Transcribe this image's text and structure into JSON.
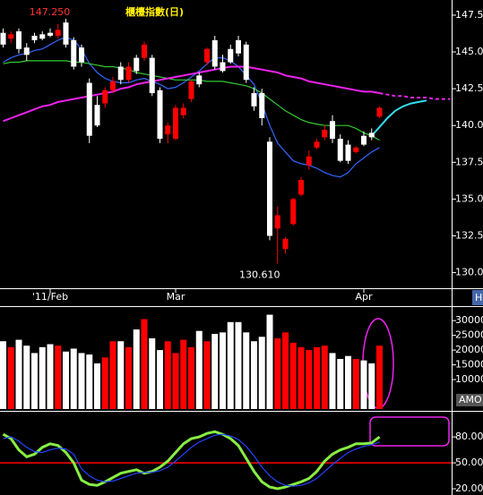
{
  "chart_data": [
    {
      "type": "candlestick",
      "title": "櫃檯指數(日)",
      "categories": [
        null,
        null,
        null,
        null,
        null,
        null,
        "'11/Feb",
        null,
        null,
        null,
        null,
        null,
        null,
        null,
        null,
        null,
        null,
        null,
        null,
        null,
        null,
        null,
        "Mar",
        null,
        null,
        null,
        null,
        null,
        null,
        null,
        null,
        null,
        null,
        null,
        null,
        null,
        null,
        null,
        null,
        null,
        null,
        null,
        null,
        null,
        null,
        null,
        "Apr",
        null,
        null,
        null,
        null,
        null,
        null,
        null,
        null,
        null,
        null,
        null
      ],
      "open": [
        146.3,
        145.9,
        146.4,
        145.3,
        146.1,
        146.2,
        146.3,
        146.1,
        147.0,
        145.8,
        145.3,
        142.9,
        141.4,
        141.5,
        142.4,
        144.0,
        143.1,
        144.6,
        144.6,
        144.6,
        142.4,
        139.4,
        139.1,
        140.7,
        141.8,
        143.4,
        144.3,
        145.8,
        144.3,
        145.2,
        145.8,
        145.5,
        142.2,
        142.2,
        138.9,
        133.0,
        131.6,
        133.3,
        135.3,
        137.3,
        138.5,
        139.2,
        140.3,
        139.1,
        138.7,
        138.2,
        139.3,
        139.5,
        140.6,
        null,
        null,
        null,
        null,
        null,
        null,
        null,
        null,
        null
      ],
      "high": [
        146.6,
        146.4,
        146.6,
        145.6,
        146.3,
        146.4,
        146.6,
        146.9,
        147.25,
        146.0,
        145.5,
        143.2,
        142.0,
        142.6,
        143.3,
        144.3,
        144.3,
        144.8,
        145.7,
        144.8,
        142.6,
        140.2,
        141.4,
        141.5,
        143.1,
        143.6,
        145.3,
        146.1,
        144.8,
        145.5,
        146.1,
        145.7,
        142.6,
        142.5,
        139.2,
        134.5,
        132.4,
        135.1,
        136.5,
        138.3,
        139.1,
        140.0,
        140.7,
        139.4,
        139.0,
        138.6,
        139.6,
        139.8,
        141.3,
        null,
        null,
        null,
        null,
        null,
        null,
        null,
        null,
        null
      ],
      "low": [
        145.3,
        145.6,
        144.9,
        144.4,
        145.6,
        145.8,
        146.0,
        145.9,
        145.3,
        143.8,
        144.0,
        138.8,
        139.9,
        141.2,
        142.2,
        142.8,
        142.9,
        143.5,
        144.4,
        142.0,
        138.8,
        138.8,
        139.0,
        140.5,
        141.6,
        142.6,
        144.1,
        143.8,
        143.6,
        144.2,
        144.7,
        142.9,
        141.0,
        140.0,
        132.2,
        130.61,
        131.3,
        133.2,
        135.2,
        137.0,
        138.4,
        139.0,
        138.8,
        137.5,
        137.4,
        138.1,
        138.6,
        139.0,
        140.5,
        null,
        null,
        null,
        null,
        null,
        null,
        null,
        null,
        null
      ],
      "close": [
        145.5,
        146.2,
        145.2,
        144.8,
        145.8,
        145.9,
        146.1,
        146.5,
        145.5,
        144.0,
        144.3,
        139.3,
        140.0,
        142.4,
        143.0,
        143.1,
        144.0,
        143.7,
        145.5,
        142.2,
        139.1,
        140.0,
        141.2,
        141.2,
        143.0,
        142.8,
        145.2,
        144.0,
        143.7,
        144.3,
        144.9,
        143.1,
        141.3,
        140.5,
        132.5,
        133.9,
        132.3,
        135.0,
        136.3,
        137.9,
        138.9,
        139.7,
        139.1,
        137.6,
        137.6,
        138.5,
        138.7,
        139.2,
        141.2,
        null,
        null,
        null,
        null,
        null,
        null,
        null,
        null,
        null
      ],
      "up_color": "#ff0000",
      "down_color": "#ffffff",
      "series": [
        {
          "color": "#3366ff",
          "values": [
            144.3,
            144.6,
            144.8,
            144.9,
            145.1,
            145.2,
            145.5,
            145.8,
            146.0,
            145.8,
            145.2,
            144.2,
            143.6,
            143.2,
            143.0,
            142.9,
            142.9,
            143.1,
            143.2,
            143.0,
            142.8,
            142.5,
            142.6,
            142.9,
            143.3,
            143.7,
            144.2,
            144.6,
            144.6,
            144.4,
            144.0,
            143.4,
            142.8,
            141.5,
            140.0,
            138.8,
            138.2,
            137.6,
            137.4,
            137.3,
            137.1,
            136.8,
            136.6,
            136.5,
            136.8,
            137.4,
            137.8,
            138.2,
            138.5,
            null,
            null,
            null,
            null,
            null,
            null,
            null,
            null,
            null
          ]
        },
        {
          "color": "#33cc33",
          "values": [
            144.2,
            144.3,
            144.3,
            144.4,
            144.4,
            144.4,
            144.4,
            144.4,
            144.4,
            144.3,
            144.3,
            144.2,
            144.1,
            144.0,
            144.0,
            143.9,
            143.8,
            143.6,
            143.5,
            143.4,
            143.3,
            143.2,
            143.1,
            143.1,
            143.1,
            143.1,
            143.0,
            143.0,
            143.0,
            142.9,
            142.8,
            142.7,
            142.5,
            142.2,
            141.8,
            141.4,
            141.0,
            140.7,
            140.4,
            140.2,
            140.1,
            140.0,
            140.0,
            140.0,
            140.0,
            139.8,
            139.5,
            139.3,
            139.0,
            null,
            null,
            null,
            null,
            null,
            null,
            null,
            null,
            null
          ]
        },
        {
          "color": "#ee22ee",
          "values": [
            140.3,
            140.5,
            140.7,
            140.9,
            141.1,
            141.3,
            141.4,
            141.6,
            141.7,
            141.8,
            141.9,
            142.0,
            142.1,
            142.2,
            142.3,
            142.5,
            142.6,
            142.8,
            142.9,
            143.0,
            143.1,
            143.2,
            143.3,
            143.4,
            143.5,
            143.6,
            143.7,
            143.8,
            143.9,
            144.0,
            144.0,
            144.0,
            143.9,
            143.8,
            143.7,
            143.6,
            143.4,
            143.3,
            143.2,
            143.0,
            142.9,
            142.8,
            142.7,
            142.6,
            142.5,
            142.4,
            142.3,
            142.3,
            142.2,
            null,
            null,
            null,
            null,
            null,
            null,
            null,
            null,
            null
          ]
        },
        {
          "color": "#ee22ee",
          "dash": true,
          "values": [
            null,
            null,
            null,
            null,
            null,
            null,
            null,
            null,
            null,
            null,
            null,
            null,
            null,
            null,
            null,
            null,
            null,
            null,
            null,
            null,
            null,
            null,
            null,
            null,
            null,
            null,
            null,
            null,
            null,
            null,
            null,
            null,
            null,
            null,
            null,
            null,
            null,
            null,
            null,
            null,
            null,
            null,
            null,
            null,
            null,
            null,
            null,
            null,
            142.2,
            142.1,
            142.0,
            142.0,
            141.9,
            141.9,
            141.9,
            141.8,
            141.8,
            141.8
          ]
        },
        {
          "color": "#33ddee",
          "values": [
            null,
            null,
            null,
            null,
            null,
            null,
            null,
            null,
            null,
            null,
            null,
            null,
            null,
            null,
            null,
            null,
            null,
            null,
            null,
            null,
            null,
            null,
            null,
            null,
            null,
            null,
            null,
            null,
            null,
            null,
            null,
            null,
            null,
            null,
            null,
            null,
            null,
            null,
            null,
            null,
            null,
            null,
            null,
            null,
            null,
            null,
            null,
            139.3,
            139.9,
            140.5,
            141.0,
            141.3,
            141.5,
            141.6,
            141.7,
            null,
            null,
            null
          ]
        }
      ],
      "ylim": [
        128.94,
        148.53
      ],
      "yticks": [
        147.5,
        {
          "value": 145,
          "label": "145.0"
        },
        142.5,
        {
          "value": 140,
          "label": "140.0"
        },
        137.5,
        {
          "value": 135,
          "label": "135.0"
        },
        132.5,
        {
          "value": 130,
          "label": "130.0"
        }
      ],
      "high_label": {
        "value": 147.25,
        "label": "147.250"
      },
      "low_label": {
        "value": 130.61,
        "label": "130.610"
      },
      "corner_label": "H"
    },
    {
      "type": "bar",
      "values": [
        23000,
        21000,
        23500,
        21500,
        19000,
        21000,
        22000,
        21500,
        19500,
        20500,
        19000,
        18500,
        15500,
        17500,
        23000,
        23000,
        21000,
        27000,
        30500,
        24000,
        20000,
        23000,
        19000,
        23500,
        21000,
        26500,
        23000,
        25500,
        26000,
        29500,
        29500,
        26000,
        23000,
        24500,
        32000,
        24000,
        26000,
        22500,
        21000,
        20000,
        21000,
        21500,
        19000,
        17000,
        18000,
        17000,
        16500,
        15500,
        21500
      ],
      "up_color": "#ff0000",
      "down_color": "#ffffff",
      "ylim": [
        0,
        34000
      ],
      "yticks": [
        10000,
        15000,
        20000,
        25000,
        30000
      ],
      "axis_label": "AMO"
    },
    {
      "type": "line",
      "series": [
        {
          "color": "#88ee44",
          "values": [
            83,
            78,
            65,
            57,
            60,
            68,
            72,
            70,
            62,
            50,
            30,
            25,
            24,
            28,
            33,
            38,
            40,
            42,
            38,
            40,
            45,
            52,
            62,
            72,
            78,
            80,
            84,
            86,
            83,
            78,
            70,
            55,
            40,
            28,
            22,
            20,
            22,
            25,
            28,
            32,
            40,
            52,
            60,
            65,
            68,
            72,
            72,
            73,
            80
          ]
        },
        {
          "color": "#2244ff",
          "values": [
            78,
            80,
            75,
            68,
            63,
            62,
            65,
            67,
            66,
            60,
            43,
            35,
            30,
            28,
            29,
            32,
            35,
            38,
            39,
            39,
            41,
            45,
            52,
            60,
            68,
            74,
            78,
            82,
            83,
            81,
            77,
            69,
            58,
            45,
            35,
            28,
            24,
            23,
            24,
            27,
            32,
            40,
            48,
            55,
            62,
            66,
            69,
            71,
            74
          ]
        }
      ],
      "ylim": [
        12.8,
        107
      ],
      "yticks": [
        {
          "value": 20,
          "label": "20.00"
        },
        {
          "value": 50,
          "label": "50.00"
        },
        {
          "value": 80,
          "label": "80.00"
        }
      ],
      "hline": 50,
      "hline_color": "#ff0000"
    }
  ]
}
